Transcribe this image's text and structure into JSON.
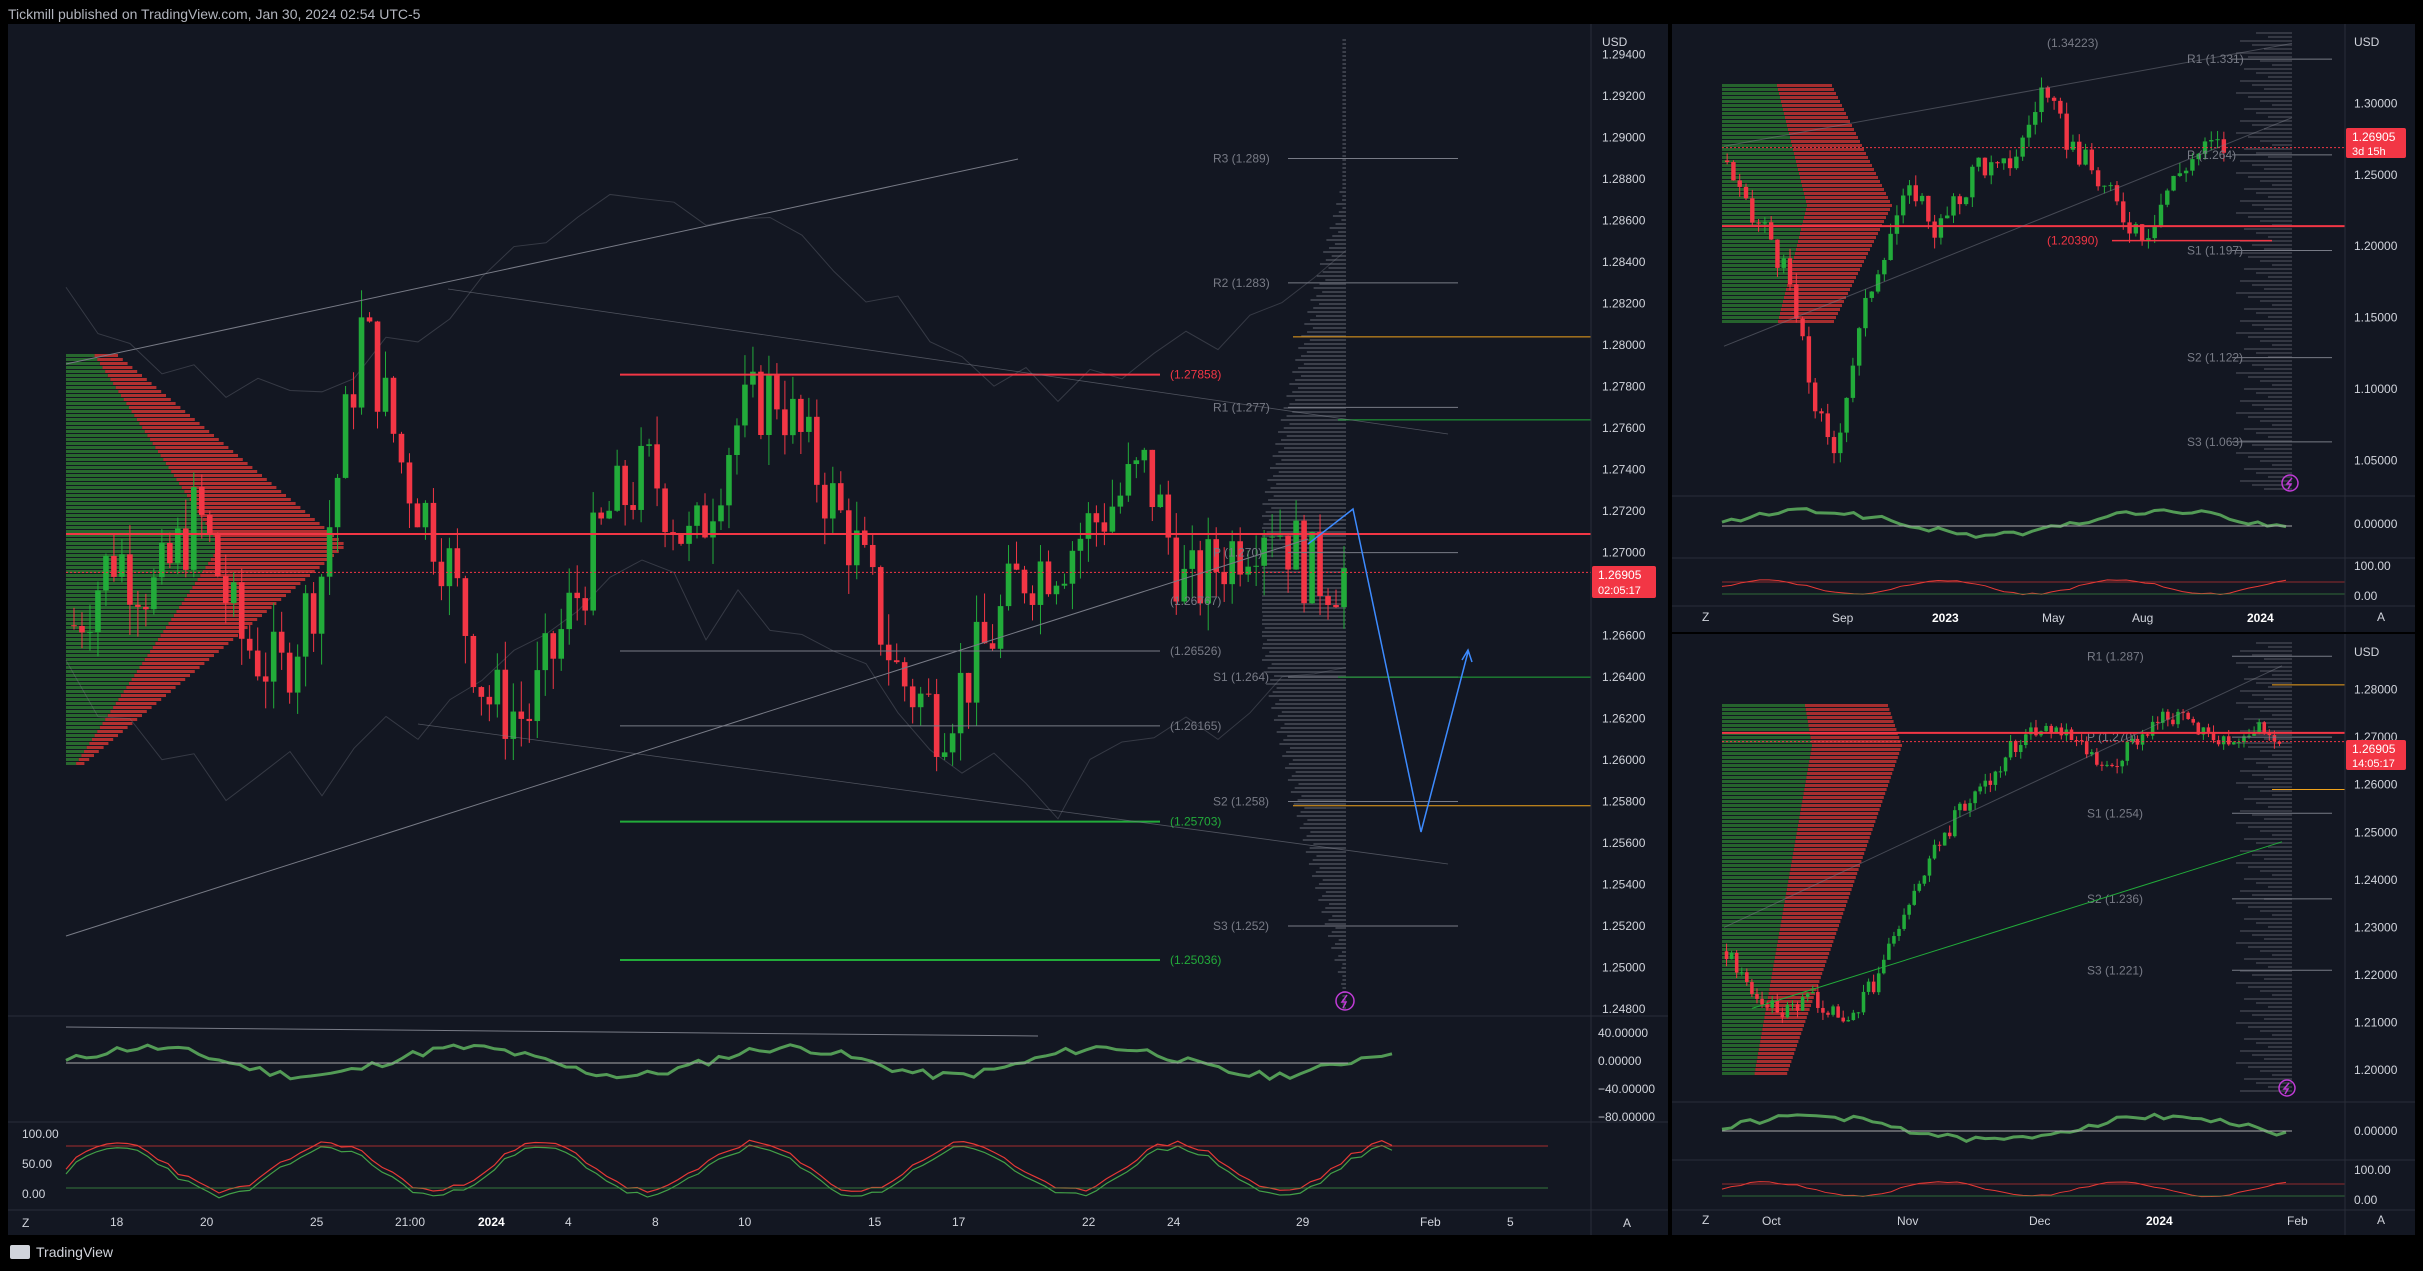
{
  "header": {
    "text": "Tickmill published on TradingView.com, Jan 30, 2024 02:54 UTC-5"
  },
  "footer": {
    "brand": "TradingView"
  },
  "colors": {
    "up": "#22ab3a",
    "down": "#f23645",
    "bg": "#131722",
    "grid": "#1e222d",
    "text": "#d1d4dc",
    "blue": "#3d8bff",
    "gold": "#f0a21b"
  },
  "main": {
    "currency": "USD",
    "price_ticks": [
      "1.29400",
      "1.29200",
      "1.29000",
      "1.28800",
      "1.28600",
      "1.28400",
      "1.28200",
      "1.28000",
      "1.27800",
      "1.27600",
      "1.27400",
      "1.27200",
      "1.27000",
      "1.26800",
      "1.26600",
      "1.26400",
      "1.26200",
      "1.26000",
      "1.25800",
      "1.25600",
      "1.25400",
      "1.25200",
      "1.25000",
      "1.24800"
    ],
    "price_label": "1.26905",
    "countdown": "02:05:17",
    "levels": [
      "R3 (1.289)",
      "R2 (1.283)",
      "R1 (1.277)",
      "P (1.270)",
      "S1 (1.264)",
      "S2 (1.258)",
      "S3 (1.252)"
    ],
    "swing_labels": [
      "(1.27858)",
      "(1.26526)",
      "(1.26165)",
      "(1.25703)",
      "(1.25036)",
      "(1.26767)"
    ],
    "osc_ticks": [
      "40.00000",
      "0.00000",
      "−40.00000",
      "−80.00000"
    ],
    "stoch_ticks": [
      "100.00",
      "50.00",
      "0.00"
    ],
    "x_labels": [
      "18",
      "20",
      "25",
      "21:00",
      "2024",
      "4",
      "8",
      "10",
      "15",
      "17",
      "22",
      "24",
      "29",
      "Feb",
      "5"
    ],
    "x_bold": "2024",
    "corner_left": "Z",
    "corner_right": "A"
  },
  "top_right": {
    "currency": "USD",
    "price_ticks": [
      "1.30000",
      "1.25000",
      "1.20000",
      "1.15000",
      "1.10000",
      "1.05000"
    ],
    "price_label": "1.26905",
    "countdown": "3d 15h",
    "levels": [
      "R1 (1.331)",
      "P (1.264)",
      "S1 (1.197)",
      "S2 (1.122)",
      "S3 (1.063)"
    ],
    "swing_labels": [
      "(1.34223)",
      "(1.20390)"
    ],
    "osc_ticks": [
      "0.00000"
    ],
    "stoch_ticks": [
      "100.00",
      "0.00"
    ],
    "x_labels": [
      "Sep",
      "2023",
      "May",
      "Aug",
      "2024"
    ],
    "x_bold": [
      "2023",
      "2024"
    ],
    "corner_left": "Z",
    "corner_right": "A"
  },
  "bottom_right": {
    "currency": "USD",
    "price_ticks": [
      "1.28000",
      "1.27000",
      "1.26000",
      "1.25000",
      "1.24000",
      "1.23000",
      "1.22000",
      "1.21000",
      "1.20000"
    ],
    "price_label": "1.26905",
    "countdown": "14:05:17",
    "levels": [
      "R1 (1.287)",
      "P (1.270)",
      "S1 (1.254)",
      "S2 (1.236)",
      "S3 (1.221)"
    ],
    "osc_ticks": [
      "0.00000"
    ],
    "stoch_ticks": [
      "100.00",
      "0.00"
    ],
    "x_labels": [
      "Oct",
      "Nov",
      "Dec",
      "2024",
      "Feb"
    ],
    "x_bold": "2024",
    "corner_left": "Z",
    "corner_right": "A"
  },
  "chart_data": [
    {
      "type": "candlestick",
      "title": "",
      "timeframe_hint": "hourly-ish",
      "ylim": [
        1.248,
        1.295
      ],
      "last_close": 1.26905,
      "pivots": {
        "R3": 1.289,
        "R2": 1.283,
        "R1": 1.277,
        "P": 1.27,
        "S1": 1.264,
        "S2": 1.258,
        "S3": 1.252
      },
      "swing_levels": [
        1.27858,
        1.26526,
        1.26165,
        1.25703,
        1.25036
      ],
      "projection_path": [
        1.27,
        1.274,
        1.256,
        1.266
      ],
      "osc_range": [
        -80,
        40
      ],
      "stoch_range": [
        0,
        100
      ]
    },
    {
      "type": "candlestick",
      "title": "",
      "timeframe_hint": "weekly/daily",
      "ylim": [
        1.03,
        1.35
      ],
      "last_close": 1.26905,
      "pivots": {
        "R1": 1.331,
        "P": 1.264,
        "S1": 1.197,
        "S2": 1.122,
        "S3": 1.063
      },
      "swing_levels": [
        1.34223,
        1.2039
      ]
    },
    {
      "type": "candlestick",
      "title": "",
      "timeframe_hint": "4h",
      "ylim": [
        1.195,
        1.29
      ],
      "last_close": 1.26905,
      "pivots": {
        "R1": 1.287,
        "P": 1.27,
        "S1": 1.254,
        "S2": 1.236,
        "S3": 1.221
      }
    }
  ]
}
